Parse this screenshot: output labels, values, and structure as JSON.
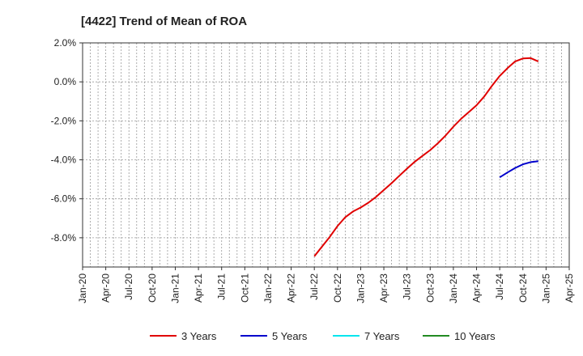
{
  "chart_data": {
    "type": "line",
    "title": "[4422]  Trend of Mean of ROA",
    "xlabel": "",
    "ylabel": "",
    "x_ticks": [
      "Jan-20",
      "Apr-20",
      "Jul-20",
      "Oct-20",
      "Jan-21",
      "Apr-21",
      "Jul-21",
      "Oct-21",
      "Jan-22",
      "Apr-22",
      "Jul-22",
      "Oct-22",
      "Jan-23",
      "Apr-23",
      "Jul-23",
      "Oct-23",
      "Jan-24",
      "Apr-24",
      "Jul-24",
      "Oct-24",
      "Jan-25",
      "Apr-25"
    ],
    "y_ticks": [
      "2.0%",
      "0.0%",
      "-2.0%",
      "-4.0%",
      "-6.0%",
      "-8.0%"
    ],
    "ylim": [
      -9.5,
      2.0
    ],
    "grid": true,
    "legend_position": "bottom",
    "series": [
      {
        "name": "3 Years",
        "color": "#e00000",
        "points": [
          [
            "Jul-22",
            -8.95
          ],
          [
            "Aug-22",
            -8.45
          ],
          [
            "Sep-22",
            -7.95
          ],
          [
            "Oct-22",
            -7.4
          ],
          [
            "Nov-22",
            -6.95
          ],
          [
            "Dec-22",
            -6.65
          ],
          [
            "Jan-23",
            -6.45
          ],
          [
            "Feb-23",
            -6.2
          ],
          [
            "Mar-23",
            -5.9
          ],
          [
            "Apr-23",
            -5.55
          ],
          [
            "May-23",
            -5.2
          ],
          [
            "Jun-23",
            -4.82
          ],
          [
            "Jul-23",
            -4.45
          ],
          [
            "Aug-23",
            -4.1
          ],
          [
            "Sep-23",
            -3.8
          ],
          [
            "Oct-23",
            -3.5
          ],
          [
            "Nov-23",
            -3.15
          ],
          [
            "Dec-23",
            -2.75
          ],
          [
            "Jan-24",
            -2.3
          ],
          [
            "Feb-24",
            -1.9
          ],
          [
            "Mar-24",
            -1.55
          ],
          [
            "Apr-24",
            -1.2
          ],
          [
            "May-24",
            -0.75
          ],
          [
            "Jun-24",
            -0.2
          ],
          [
            "Jul-24",
            0.3
          ],
          [
            "Aug-24",
            0.7
          ],
          [
            "Sep-24",
            1.05
          ],
          [
            "Oct-24",
            1.2
          ],
          [
            "Nov-24",
            1.22
          ],
          [
            "Dec-24",
            1.05
          ]
        ]
      },
      {
        "name": "5 Years",
        "color": "#0000cc",
        "points": [
          [
            "Jul-24",
            -4.9
          ],
          [
            "Aug-24",
            -4.65
          ],
          [
            "Sep-24",
            -4.42
          ],
          [
            "Oct-24",
            -4.23
          ],
          [
            "Nov-24",
            -4.12
          ],
          [
            "Dec-24",
            -4.07
          ]
        ]
      },
      {
        "name": "7 Years",
        "color": "#00e5ee",
        "points": []
      },
      {
        "name": "10 Years",
        "color": "#228b22",
        "points": []
      }
    ]
  }
}
